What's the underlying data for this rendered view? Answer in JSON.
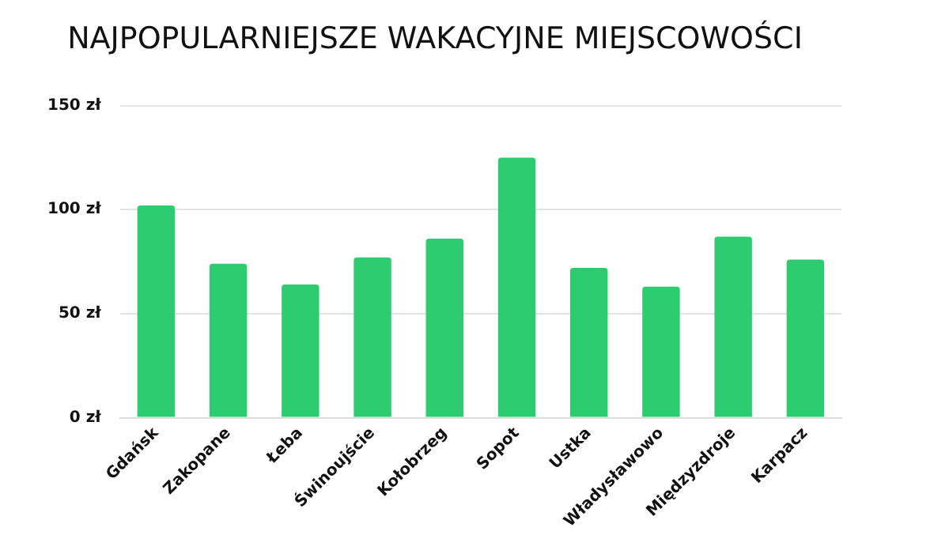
{
  "chart_data": {
    "type": "bar",
    "title": "NAJPOPULARNIEJSZE WAKACYJNE MIEJSCOWOŚCI",
    "categories": [
      "Gdańsk",
      "Zakopane",
      "Łeba",
      "Świnoujście",
      "Kołobrzeg",
      "Sopot",
      "Ustka",
      "Władysławowo",
      "Międzyzdroje",
      "Karpacz"
    ],
    "values": [
      102,
      74,
      64,
      77,
      86,
      125,
      72,
      63,
      87,
      76
    ],
    "color": "#2ecc71",
    "ylim": [
      0,
      150
    ],
    "yticks": [
      {
        "value": 0,
        "label": "0 zł"
      },
      {
        "value": 50,
        "label": "50 zł"
      },
      {
        "value": 100,
        "label": "100 zł"
      },
      {
        "value": 150,
        "label": "150 zł"
      }
    ],
    "grid": "y"
  }
}
